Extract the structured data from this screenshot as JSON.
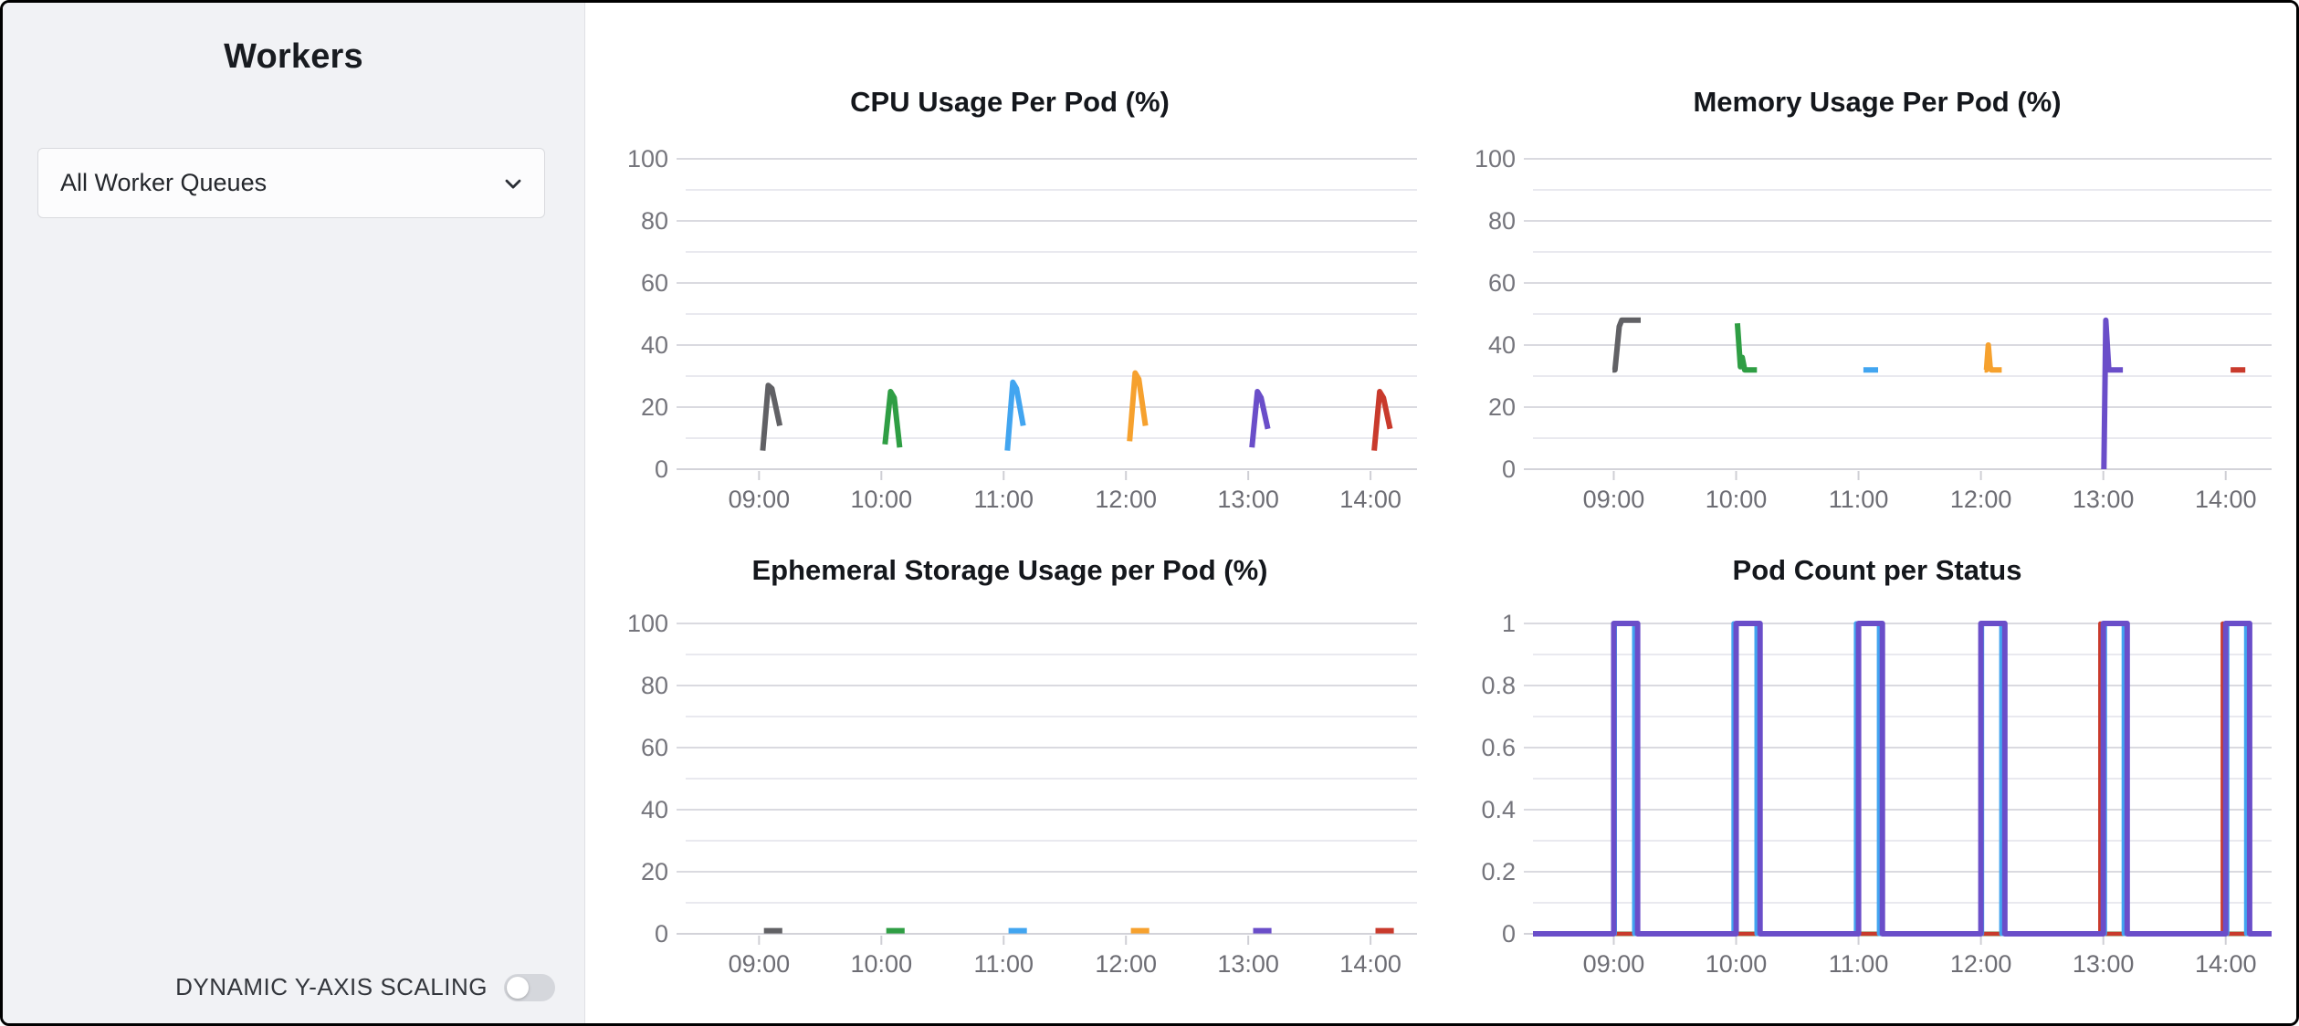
{
  "sidebar": {
    "title": "Workers",
    "queue_selector": {
      "value": "All Worker Queues"
    },
    "toggle": {
      "label": "DYNAMIC Y-AXIS SCALING",
      "state": "off"
    }
  },
  "colors": {
    "gray": "#616165",
    "green": "#2f9e44",
    "blue": "#42a5f0",
    "orange": "#f6a12e",
    "purple": "#6a4ec9",
    "red": "#c93a2c"
  },
  "chart_data": [
    {
      "type": "line",
      "title": "CPU Usage Per Pod (%)",
      "xlim": [
        8.4,
        14.38
      ],
      "ylim": [
        0,
        100
      ],
      "x_tick_values": [
        9,
        10,
        11,
        12,
        13,
        14
      ],
      "x_tick_labels": [
        "09:00",
        "10:00",
        "11:00",
        "12:00",
        "13:00",
        "14:00"
      ],
      "y_tick_values": [
        0,
        20,
        40,
        60,
        80,
        100
      ],
      "y_tick_labels": [
        "0",
        "20",
        "40",
        "60",
        "80",
        "100"
      ],
      "y_minor_step": 10,
      "series": [
        {
          "color": "#616165",
          "points": [
            [
              9.03,
              6
            ],
            [
              9.075,
              27
            ],
            [
              9.105,
              26
            ],
            [
              9.17,
              14
            ]
          ]
        },
        {
          "color": "#2f9e44",
          "points": [
            [
              10.03,
              8
            ],
            [
              10.075,
              25
            ],
            [
              10.105,
              23
            ],
            [
              10.15,
              7
            ]
          ]
        },
        {
          "color": "#42a5f0",
          "points": [
            [
              11.03,
              6
            ],
            [
              11.075,
              28
            ],
            [
              11.105,
              26
            ],
            [
              11.16,
              14
            ]
          ]
        },
        {
          "color": "#f6a12e",
          "points": [
            [
              12.03,
              9
            ],
            [
              12.075,
              31
            ],
            [
              12.105,
              29
            ],
            [
              12.16,
              14
            ]
          ]
        },
        {
          "color": "#6a4ec9",
          "points": [
            [
              13.03,
              7
            ],
            [
              13.075,
              25
            ],
            [
              13.105,
              23
            ],
            [
              13.16,
              13
            ]
          ]
        },
        {
          "color": "#c93a2c",
          "points": [
            [
              14.03,
              6
            ],
            [
              14.075,
              25
            ],
            [
              14.105,
              23
            ],
            [
              14.16,
              13
            ]
          ]
        }
      ]
    },
    {
      "type": "line",
      "title": "Memory Usage Per Pod (%)",
      "xlim": [
        8.34,
        14.375
      ],
      "ylim": [
        0,
        100
      ],
      "x_tick_values": [
        9,
        10,
        11,
        12,
        13,
        14
      ],
      "x_tick_labels": [
        "09:00",
        "10:00",
        "11:00",
        "12:00",
        "13:00",
        "14:00"
      ],
      "y_tick_values": [
        0,
        20,
        40,
        60,
        80,
        100
      ],
      "y_tick_labels": [
        "0",
        "20",
        "40",
        "60",
        "80",
        "100"
      ],
      "y_minor_step": 10,
      "series": [
        {
          "color": "#616165",
          "points": [
            [
              8.99,
              32
            ],
            [
              9.01,
              32
            ],
            [
              9.045,
              46
            ],
            [
              9.065,
              48
            ],
            [
              9.22,
              48
            ]
          ]
        },
        {
          "color": "#2f9e44",
          "points": [
            [
              10.01,
              47
            ],
            [
              10.035,
              33
            ],
            [
              10.05,
              36
            ],
            [
              10.07,
              32
            ],
            [
              10.17,
              32
            ]
          ]
        },
        {
          "color": "#42a5f0",
          "points": [
            [
              11.04,
              32
            ],
            [
              11.16,
              32
            ]
          ]
        },
        {
          "color": "#f6a12e",
          "points": [
            [
              12.03,
              32
            ],
            [
              12.045,
              32
            ],
            [
              12.06,
              40
            ],
            [
              12.075,
              33
            ],
            [
              12.085,
              32
            ],
            [
              12.17,
              32
            ]
          ]
        },
        {
          "color": "#6a4ec9",
          "points": [
            [
              13.005,
              0
            ],
            [
              13.02,
              48
            ],
            [
              13.045,
              32
            ],
            [
              13.16,
              32
            ]
          ]
        },
        {
          "color": "#c93a2c",
          "points": [
            [
              14.04,
              32
            ],
            [
              14.16,
              32
            ]
          ]
        }
      ]
    },
    {
      "type": "line",
      "title": "Ephemeral Storage Usage per Pod (%)",
      "xlim": [
        8.4,
        14.38
      ],
      "ylim": [
        0,
        100
      ],
      "x_tick_values": [
        9,
        10,
        11,
        12,
        13,
        14
      ],
      "x_tick_labels": [
        "09:00",
        "10:00",
        "11:00",
        "12:00",
        "13:00",
        "14:00"
      ],
      "y_tick_values": [
        0,
        20,
        40,
        60,
        80,
        100
      ],
      "y_tick_labels": [
        "0",
        "20",
        "40",
        "60",
        "80",
        "100"
      ],
      "y_minor_step": 10,
      "series": [
        {
          "color": "#616165",
          "points": [
            [
              9.04,
              1
            ],
            [
              9.19,
              1
            ]
          ]
        },
        {
          "color": "#2f9e44",
          "points": [
            [
              10.04,
              1
            ],
            [
              10.19,
              1
            ]
          ]
        },
        {
          "color": "#42a5f0",
          "points": [
            [
              11.04,
              1
            ],
            [
              11.19,
              1
            ]
          ]
        },
        {
          "color": "#f6a12e",
          "points": [
            [
              12.04,
              1
            ],
            [
              12.19,
              1
            ]
          ]
        },
        {
          "color": "#6a4ec9",
          "points": [
            [
              13.04,
              1
            ],
            [
              13.19,
              1
            ]
          ]
        },
        {
          "color": "#c93a2c",
          "points": [
            [
              14.04,
              1
            ],
            [
              14.19,
              1
            ]
          ]
        }
      ]
    },
    {
      "type": "line",
      "title": "Pod Count per Status",
      "xlim": [
        8.34,
        14.375
      ],
      "ylim": [
        0,
        1
      ],
      "x_tick_values": [
        9,
        10,
        11,
        12,
        13,
        14
      ],
      "x_tick_labels": [
        "09:00",
        "10:00",
        "11:00",
        "12:00",
        "13:00",
        "14:00"
      ],
      "y_tick_values": [
        0,
        0.2,
        0.4,
        0.6,
        0.8,
        1
      ],
      "y_tick_labels": [
        "0",
        "0.2",
        "0.4",
        "0.6",
        "0.8",
        "1"
      ],
      "y_minor_step": 0.1,
      "series": [
        {
          "color": "#2f9e44",
          "width": 5,
          "points": [
            [
              8.34,
              0
            ],
            [
              14.375,
              0
            ]
          ]
        },
        {
          "color": "#c93a2c",
          "width": 4.5,
          "base": 0,
          "high": 1,
          "pulses": [
            [
              12.975,
              13.008
            ],
            [
              13.975,
              14.008
            ]
          ]
        },
        {
          "color": "#42a5f0",
          "width": 5,
          "base": 0,
          "high": 1,
          "pulses": [
            [
              9.008,
              9.168
            ],
            [
              9.98,
              10.168
            ],
            [
              10.98,
              11.168
            ],
            [
              12.008,
              12.168
            ],
            [
              13.012,
              13.168
            ],
            [
              14.012,
              14.168
            ]
          ]
        },
        {
          "color": "#6a4ec9",
          "width": 6,
          "base": 0,
          "high": 1,
          "pulses": [
            [
              9.0,
              9.195
            ],
            [
              10.0,
              10.195
            ],
            [
              11.0,
              11.195
            ],
            [
              12.0,
              12.195
            ],
            [
              13.0,
              13.195
            ],
            [
              14.0,
              14.195
            ]
          ]
        }
      ]
    }
  ]
}
